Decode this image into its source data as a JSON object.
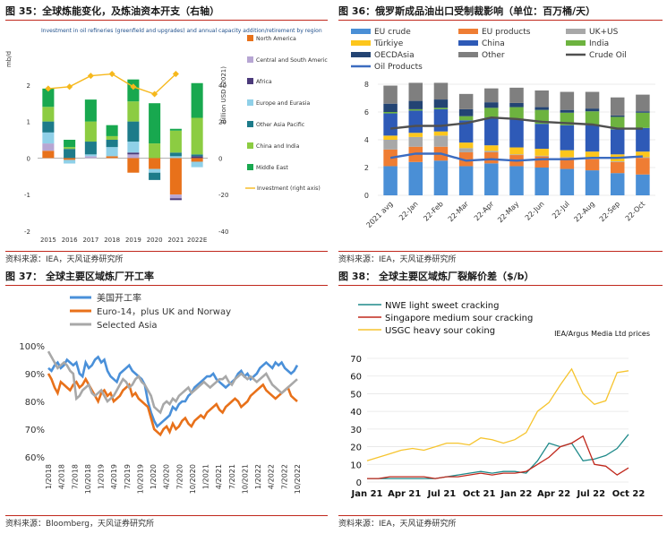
{
  "charts": [
    {
      "id": "c35",
      "title": "图 35：全球炼能变化，及炼油资本开支（右轴）",
      "source": "资料来源：IEA，天风证券研究所",
      "note": "Investment in oil refineries (greenfield and upgrades) and annual capacity addition/retirement by region",
      "left_unit": "mb/d",
      "right_unit": "Billion USD (2021)"
    },
    {
      "id": "c36",
      "title": "图 36：俄罗斯成品油出口受制裁影响（单位：百万桶/天）",
      "source": "资料来源：IEA，天风证券研究所"
    },
    {
      "id": "c37",
      "title": "图 37：  全球主要区域炼厂开工率",
      "source": "资料来源：Bloomberg，天风证券研究所"
    },
    {
      "id": "c38",
      "title": "图 38：  全球主要区域炼厂裂解价差（$/b）",
      "source": "资料来源：IEA，天风证券研究所",
      "note": "IEA/Argus Media Ltd prices"
    }
  ],
  "chart_data": [
    {
      "type": "bar",
      "stacked": true,
      "categories": [
        "2015",
        "2016",
        "2017",
        "2018",
        "2019",
        "2020",
        "2021",
        "2022E"
      ],
      "series": [
        {
          "name": "North America",
          "color": "#e8711a",
          "values": [
            0.2,
            -0.05,
            0,
            0.05,
            -0.4,
            -0.3,
            -1.0,
            -0.1
          ]
        },
        {
          "name": "Central and South America",
          "color": "#b7a6d3",
          "values": [
            0.2,
            0,
            0.05,
            0,
            0.1,
            0,
            -0.1,
            0
          ]
        },
        {
          "name": "Africa",
          "color": "#4b3a7a",
          "values": [
            0,
            0,
            0,
            0,
            0.05,
            0,
            -0.05,
            0.05
          ]
        },
        {
          "name": "Europe and Eurasia",
          "color": "#8fd0e8",
          "values": [
            0.3,
            -0.1,
            0.05,
            0.25,
            0.3,
            -0.1,
            0.05,
            -0.15
          ]
        },
        {
          "name": "Other Asia Pacific",
          "color": "#1d7b8a",
          "values": [
            0.3,
            0.25,
            0.35,
            0.2,
            0.55,
            -0.2,
            0.1,
            0.05
          ]
        },
        {
          "name": "China and India",
          "color": "#8ccc42",
          "values": [
            0.4,
            0.05,
            0.55,
            0.1,
            0.55,
            0.4,
            0.6,
            1.0
          ]
        },
        {
          "name": "Middle East",
          "color": "#18a84f",
          "values": [
            0.5,
            0.2,
            0.6,
            0.3,
            0.6,
            1.1,
            0.05,
            0.95
          ]
        }
      ],
      "line": {
        "name": "Investment (right axis)",
        "color": "#f6b81c",
        "values": [
          38,
          39,
          45,
          46,
          39,
          35,
          46,
          null
        ]
      },
      "ylim": [
        -2,
        3
      ],
      "y2lim": [
        -40,
        60
      ],
      "legend": "right"
    },
    {
      "type": "bar",
      "stacked": true,
      "categories": [
        "2021 avg",
        "22-Jan",
        "22-Feb",
        "22-Mar",
        "22-Apr",
        "22-May",
        "22-Jun",
        "22-Jul",
        "22-Aug",
        "22-Sep",
        "22-Oct"
      ],
      "series": [
        {
          "name": "EU crude",
          "color": "#4a8fd6",
          "values": [
            2.1,
            2.4,
            2.5,
            2.1,
            2.3,
            2.1,
            2.0,
            1.9,
            1.8,
            1.6,
            1.5
          ]
        },
        {
          "name": "EU products",
          "color": "#ef7d33",
          "values": [
            1.2,
            1.1,
            1.0,
            1.0,
            0.8,
            0.8,
            0.8,
            0.8,
            0.8,
            0.8,
            1.2
          ]
        },
        {
          "name": "UK+US",
          "color": "#a8a8a8",
          "values": [
            0.7,
            0.7,
            0.8,
            0.3,
            0.1,
            0.05,
            0.05,
            0.05,
            0.05,
            0.05,
            0.05
          ]
        },
        {
          "name": "Türkiye",
          "color": "#fdc61c",
          "values": [
            0.3,
            0.3,
            0.3,
            0.4,
            0.4,
            0.5,
            0.5,
            0.5,
            0.5,
            0.5,
            0.4
          ]
        },
        {
          "name": "China",
          "color": "#2e5ab7",
          "values": [
            1.6,
            1.6,
            1.6,
            1.6,
            2.0,
            2.0,
            1.8,
            1.8,
            1.9,
            1.8,
            1.7
          ]
        },
        {
          "name": "India",
          "color": "#6db33f",
          "values": [
            0.1,
            0.1,
            0.1,
            0.3,
            0.7,
            0.9,
            1.0,
            0.9,
            1.0,
            0.9,
            1.1
          ]
        },
        {
          "name": "OECDAsia",
          "color": "#234473",
          "values": [
            0.6,
            0.6,
            0.6,
            0.5,
            0.4,
            0.3,
            0.2,
            0.2,
            0.2,
            0.1,
            0.1
          ]
        },
        {
          "name": "Other",
          "color": "#7f7f7f",
          "values": [
            1.3,
            1.3,
            1.2,
            1.1,
            1.0,
            1.1,
            1.2,
            1.3,
            1.2,
            1.3,
            1.2
          ]
        }
      ],
      "lines": [
        {
          "name": "Crude Oil",
          "color": "#505050",
          "values": [
            4.8,
            5.0,
            5.0,
            5.2,
            5.6,
            5.5,
            5.3,
            5.2,
            5.1,
            4.8,
            4.8
          ]
        },
        {
          "name": "Oil Products",
          "color": "#3c6cc0",
          "values": [
            2.7,
            3.0,
            3.0,
            2.5,
            2.6,
            2.5,
            2.6,
            2.6,
            2.7,
            2.7,
            2.8
          ]
        }
      ],
      "ylim": [
        0,
        8
      ],
      "legend": "top"
    },
    {
      "type": "line",
      "x_ticks": [
        "1/2018",
        "4/2018",
        "7/2018",
        "10/2018",
        "1/2019",
        "4/2019",
        "7/2019",
        "10/2019",
        "1/2020",
        "4/2020",
        "7/2020",
        "10/2020",
        "1/2021",
        "4/2021",
        "7/2021",
        "10/2021",
        "1/2022",
        "4/2022",
        "7/2022",
        "10/2022"
      ],
      "series": [
        {
          "name": "美国开工率",
          "color": "#4a90d9",
          "values": [
            92,
            91,
            93,
            94,
            92,
            93,
            95,
            94,
            93,
            94,
            90,
            89,
            94,
            92,
            93,
            95,
            96,
            94,
            95,
            91,
            89,
            88,
            87,
            90,
            91,
            92,
            93,
            91,
            90,
            89,
            88,
            86,
            80,
            76,
            73,
            71,
            72,
            73,
            74,
            75,
            78,
            77,
            79,
            80,
            80,
            82,
            83,
            85,
            86,
            87,
            88,
            89,
            89,
            90,
            88,
            87,
            86,
            85,
            86,
            87,
            88,
            90,
            91,
            89,
            90,
            88,
            89,
            90,
            92,
            93,
            94,
            93,
            92,
            94,
            93,
            94,
            92,
            91,
            90,
            91,
            93
          ]
        },
        {
          "name": "Euro-14，plus UK and Norway",
          "color": "#e8711a",
          "values": [
            90,
            88,
            85,
            83,
            87,
            86,
            85,
            84,
            86,
            87,
            85,
            86,
            88,
            86,
            84,
            82,
            80,
            83,
            84,
            82,
            83,
            80,
            81,
            82,
            84,
            85,
            86,
            82,
            83,
            81,
            80,
            79,
            78,
            74,
            70,
            69,
            68,
            70,
            71,
            69,
            72,
            70,
            71,
            73,
            74,
            72,
            71,
            73,
            74,
            75,
            74,
            76,
            77,
            78,
            79,
            77,
            76,
            78,
            79,
            80,
            81,
            80,
            78,
            79,
            80,
            82,
            83,
            84,
            85,
            86,
            84,
            83,
            82,
            81,
            82,
            83,
            84,
            85,
            82,
            81,
            80
          ]
        },
        {
          "name": "Selected Asia",
          "color": "#a8a8a8",
          "values": [
            98,
            96,
            94,
            92,
            93,
            94,
            93,
            91,
            90,
            81,
            82,
            84,
            85,
            86,
            83,
            82,
            83,
            84,
            82,
            80,
            81,
            82,
            84,
            86,
            88,
            87,
            85,
            86,
            88,
            89,
            87,
            86,
            84,
            82,
            78,
            77,
            76,
            79,
            80,
            79,
            81,
            80,
            82,
            83,
            84,
            85,
            83,
            84,
            85,
            86,
            87,
            86,
            85,
            86,
            87,
            88,
            88,
            89,
            87,
            86,
            88,
            89,
            90,
            89,
            88,
            89,
            88,
            87,
            88,
            89,
            90,
            88,
            86,
            85,
            84,
            83,
            84,
            85,
            86,
            87,
            88
          ]
        }
      ],
      "ylim": [
        60,
        100
      ],
      "y_ticks": [
        "60%",
        "70%",
        "80%",
        "90%",
        "100%"
      ],
      "legend": "top-left"
    },
    {
      "type": "line",
      "x_ticks": [
        "Jan 21",
        "Apr 21",
        "Jul 21",
        "Oct 21",
        "Jan 22",
        "Apr 22",
        "Jul 22",
        "Oct 22"
      ],
      "series": [
        {
          "name": "NWE light sweet cracking",
          "color": "#1f8a8a",
          "values": [
            2,
            2,
            2,
            2,
            2,
            2,
            2,
            3,
            4,
            5,
            6,
            5,
            6,
            6,
            5,
            12,
            22,
            20,
            22,
            12,
            13,
            15,
            19,
            27
          ]
        },
        {
          "name": "Singapore medium sour cracking",
          "color": "#c0281c",
          "values": [
            2,
            2,
            3,
            3,
            3,
            3,
            2,
            3,
            3,
            4,
            5,
            4,
            5,
            5,
            6,
            10,
            14,
            20,
            22,
            26,
            10,
            9,
            4,
            8
          ]
        },
        {
          "name": "USGC heavy sour coking",
          "color": "#f6c42e",
          "values": [
            12,
            14,
            16,
            18,
            19,
            18,
            20,
            22,
            22,
            21,
            25,
            24,
            22,
            24,
            28,
            40,
            45,
            55,
            64,
            50,
            44,
            46,
            62,
            63
          ]
        }
      ],
      "ylim": [
        0,
        70
      ],
      "y_ticks": [
        0,
        10,
        20,
        30,
        40,
        50,
        60,
        70
      ],
      "legend": "top-left"
    }
  ]
}
